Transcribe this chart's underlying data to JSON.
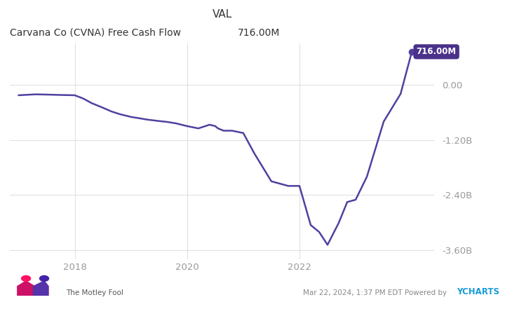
{
  "title_val_label": "VAL",
  "title_series": "Carvana Co (CVNA) Free Cash Flow",
  "title_val": "716.00M",
  "line_color": "#5040a0",
  "label_bg_color": "#4a318a",
  "label_text_color": "#ffffff",
  "label_text": "716.00M",
  "bg_color": "#ffffff",
  "plot_bg_color": "#ffffff",
  "grid_color": "#e0e0e0",
  "tick_label_color": "#999999",
  "ylabel_ticks": [
    "0.00",
    "-1.20B",
    "-2.40B",
    "-3.60B"
  ],
  "ylabel_values": [
    0,
    -1200000000,
    -2400000000,
    -3600000000
  ],
  "ylim_bottom": -3800000000,
  "ylim_top": 900000000,
  "xlim_left": 2016.85,
  "xlim_right": 2024.4,
  "xticks": [
    2018,
    2020,
    2022
  ],
  "footer_left": "The Motley Fool",
  "footer_center": "Mar 22, 2024, 1:37 PM EDT Powered by",
  "footer_ycharts": "YCHARTS",
  "data_x": [
    2017.0,
    2017.15,
    2017.3,
    2017.5,
    2017.65,
    2017.8,
    2018.0,
    2018.15,
    2018.3,
    2018.5,
    2018.65,
    2018.8,
    2019.0,
    2019.15,
    2019.3,
    2019.5,
    2019.65,
    2019.8,
    2020.0,
    2020.2,
    2020.4,
    2020.5,
    2020.55,
    2020.65,
    2020.8,
    2021.0,
    2021.2,
    2021.5,
    2021.8,
    2022.0,
    2022.2,
    2022.35,
    2022.5,
    2022.7,
    2022.85,
    2023.0,
    2023.2,
    2023.5,
    2023.8,
    2024.0
  ],
  "data_y": [
    -230000000,
    -220000000,
    -210000000,
    -215000000,
    -220000000,
    -225000000,
    -230000000,
    -300000000,
    -400000000,
    -500000000,
    -580000000,
    -640000000,
    -700000000,
    -730000000,
    -760000000,
    -790000000,
    -810000000,
    -840000000,
    -900000000,
    -950000000,
    -870000000,
    -900000000,
    -950000000,
    -1000000000,
    -1000000000,
    -1050000000,
    -1500000000,
    -2100000000,
    -2200000000,
    -2200000000,
    -3050000000,
    -3200000000,
    -3480000000,
    -3000000000,
    -2550000000,
    -2500000000,
    -2000000000,
    -800000000,
    -200000000,
    716000000
  ]
}
